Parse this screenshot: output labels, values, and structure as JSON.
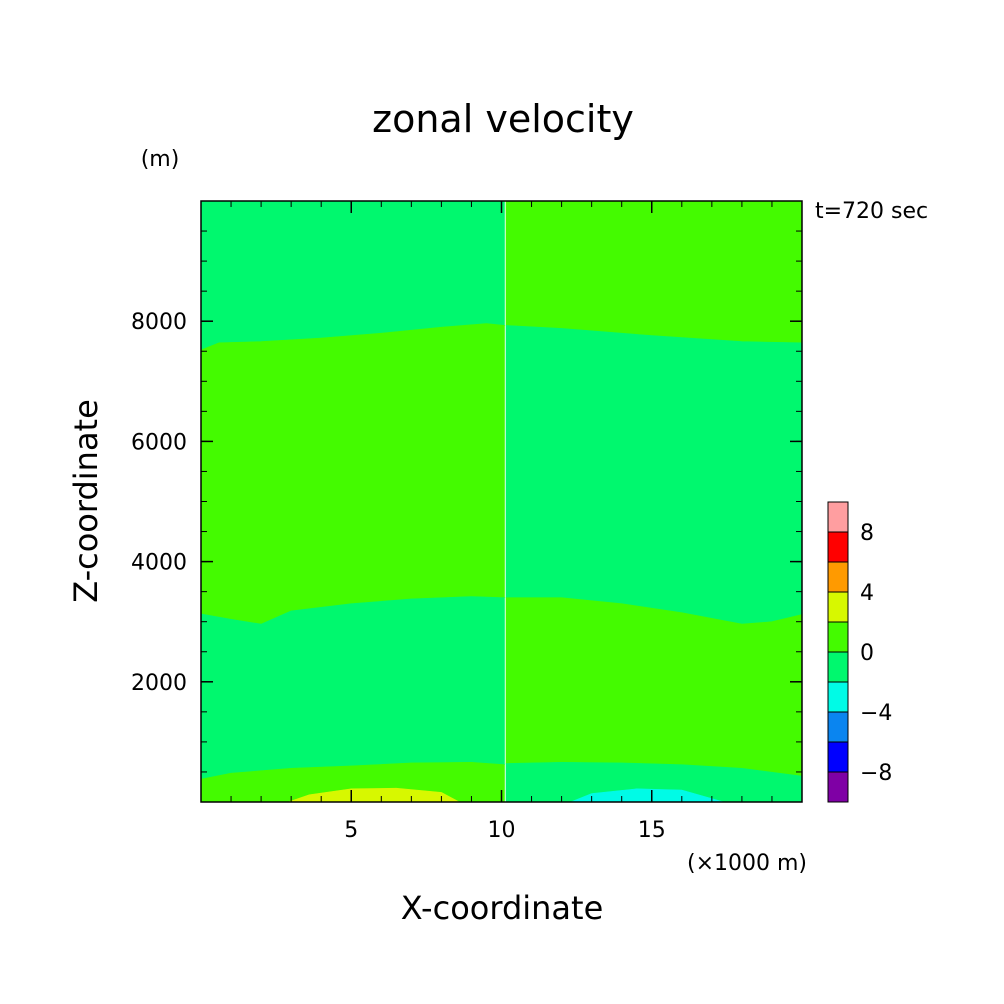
{
  "chart_data": {
    "type": "heatmap",
    "title": "zonal velocity",
    "xlabel": "X-coordinate",
    "ylabel": "Z-coordinate",
    "x_unit": "(×1000 m)",
    "y_unit": "(m)",
    "time_label": "t=720 sec",
    "xlim": [
      0,
      20
    ],
    "ylim": [
      0,
      10000
    ],
    "x_ticks": [
      5,
      10,
      15
    ],
    "y_ticks": [
      2000,
      4000,
      6000,
      8000
    ],
    "colorbar": {
      "levels": [
        -10,
        -8,
        -6,
        -4,
        -2,
        0,
        2,
        4,
        6,
        8,
        10
      ],
      "tick_labels": [
        -8,
        -4,
        0,
        4,
        8
      ],
      "colors": [
        "#7f00a5",
        "#0000ff",
        "#0a85f0",
        "#00fbe6",
        "#00f86e",
        "#44fb00",
        "#d7f800",
        "#ff9a00",
        "#ff0000",
        "#ff9ea0"
      ]
    },
    "regions": [
      {
        "value_range": [
          -2,
          0
        ],
        "color": "#00f86e",
        "points": [
          [
            0,
            10000
          ],
          [
            10.1,
            10000
          ],
          [
            10.1,
            7930
          ],
          [
            9.5,
            7960
          ],
          [
            8,
            7900
          ],
          [
            6,
            7800
          ],
          [
            4,
            7720
          ],
          [
            2,
            7660
          ],
          [
            0.6,
            7640
          ],
          [
            0,
            7520
          ]
        ]
      },
      {
        "value_range": [
          0,
          2
        ],
        "color": "#44fb00",
        "points": [
          [
            10.15,
            10000
          ],
          [
            20,
            10000
          ],
          [
            20,
            7640
          ],
          [
            18,
            7660
          ],
          [
            15,
            7760
          ],
          [
            12,
            7880
          ],
          [
            10.15,
            7930
          ]
        ]
      },
      {
        "value_range": [
          0,
          2
        ],
        "color": "#44fb00",
        "points": [
          [
            0,
            7520
          ],
          [
            0.6,
            7640
          ],
          [
            2,
            7660
          ],
          [
            4,
            7720
          ],
          [
            6,
            7800
          ],
          [
            8,
            7900
          ],
          [
            9.5,
            7960
          ],
          [
            10.1,
            7930
          ],
          [
            10.1,
            3400
          ],
          [
            9,
            3420
          ],
          [
            7,
            3380
          ],
          [
            5,
            3300
          ],
          [
            3,
            3180
          ],
          [
            2,
            2960
          ],
          [
            1,
            3040
          ],
          [
            0,
            3130
          ]
        ]
      },
      {
        "value_range": [
          -2,
          0
        ],
        "color": "#00f86e",
        "points": [
          [
            10.15,
            7930
          ],
          [
            12,
            7880
          ],
          [
            15,
            7760
          ],
          [
            18,
            7660
          ],
          [
            20,
            7640
          ],
          [
            20,
            3120
          ],
          [
            19,
            3000
          ],
          [
            18,
            2960
          ],
          [
            16,
            3150
          ],
          [
            14,
            3300
          ],
          [
            12,
            3400
          ],
          [
            10.15,
            3400
          ]
        ]
      },
      {
        "value_range": [
          -2,
          0
        ],
        "color": "#00f86e",
        "points": [
          [
            0,
            3130
          ],
          [
            1,
            3040
          ],
          [
            2,
            2960
          ],
          [
            3,
            3180
          ],
          [
            5,
            3300
          ],
          [
            7,
            3380
          ],
          [
            9,
            3420
          ],
          [
            10.1,
            3400
          ],
          [
            10.1,
            620
          ],
          [
            9,
            660
          ],
          [
            7,
            650
          ],
          [
            5,
            600
          ],
          [
            3,
            560
          ],
          [
            1,
            480
          ],
          [
            0,
            380
          ]
        ]
      },
      {
        "value_range": [
          0,
          2
        ],
        "color": "#44fb00",
        "points": [
          [
            10.15,
            3400
          ],
          [
            12,
            3400
          ],
          [
            14,
            3300
          ],
          [
            16,
            3150
          ],
          [
            18,
            2960
          ],
          [
            19,
            3000
          ],
          [
            20,
            3120
          ],
          [
            20,
            430
          ],
          [
            18,
            560
          ],
          [
            16,
            620
          ],
          [
            14,
            650
          ],
          [
            12,
            660
          ],
          [
            10.15,
            640
          ]
        ]
      },
      {
        "value_range": [
          0,
          2
        ],
        "color": "#44fb00",
        "points": [
          [
            0,
            380
          ],
          [
            1,
            480
          ],
          [
            3,
            560
          ],
          [
            5,
            600
          ],
          [
            7,
            650
          ],
          [
            9,
            660
          ],
          [
            10.1,
            620
          ],
          [
            10.1,
            0
          ],
          [
            0,
            0
          ]
        ]
      },
      {
        "value_range": [
          -2,
          0
        ],
        "color": "#00f86e",
        "points": [
          [
            10.15,
            640
          ],
          [
            12,
            660
          ],
          [
            14,
            650
          ],
          [
            16,
            620
          ],
          [
            18,
            560
          ],
          [
            20,
            430
          ],
          [
            20,
            0
          ],
          [
            10.15,
            0
          ]
        ]
      },
      {
        "value_range": [
          2,
          4
        ],
        "color": "#d7f800",
        "points": [
          [
            2.9,
            0
          ],
          [
            3.6,
            120
          ],
          [
            5,
            220
          ],
          [
            6.5,
            230
          ],
          [
            8,
            160
          ],
          [
            8.6,
            0
          ]
        ]
      },
      {
        "value_range": [
          -4,
          -2
        ],
        "color": "#00fbe6",
        "points": [
          [
            12.3,
            0
          ],
          [
            13,
            140
          ],
          [
            14.5,
            220
          ],
          [
            16,
            200
          ],
          [
            17.4,
            0
          ]
        ]
      }
    ]
  }
}
